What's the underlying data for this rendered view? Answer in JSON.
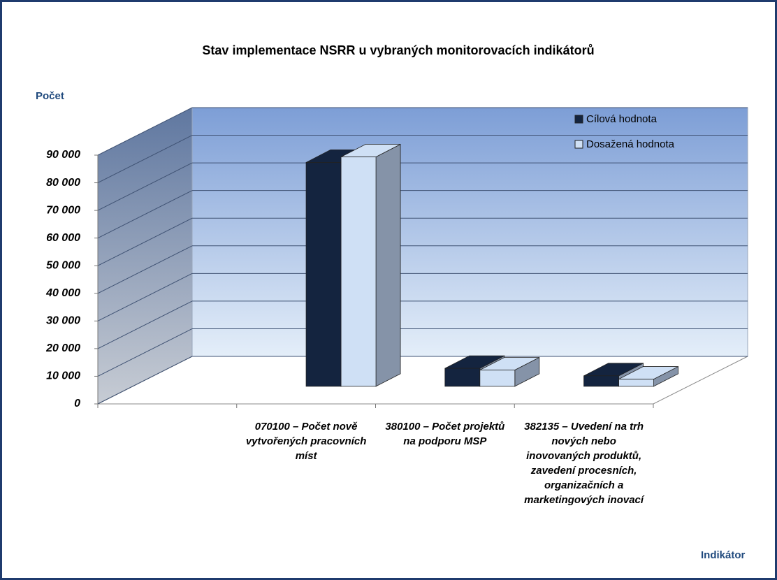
{
  "chart_data": {
    "type": "bar3d",
    "title": "Stav implementace NSRR  u vybraných monitorovacích indikátorů",
    "ylabel": "Počet",
    "xlabel": "Indikátor",
    "categories": [
      null,
      "070100 – Počet nově vytvořených pracovních míst",
      "380100 – Počet projektů na podporu MSP",
      "382135 – Uvedení na trh nových  nebo inovovaných produktů, zavedení procesních, organizačních a marketingových inovací"
    ],
    "series": [
      {
        "name": "Cílová hodnota",
        "color": "#14243f",
        "values": [
          null,
          81000,
          6500,
          3800
        ]
      },
      {
        "name": "Dosažená hodnota",
        "color": "#cfe0f5",
        "values": [
          null,
          83000,
          5900,
          2600
        ]
      }
    ],
    "ylim": [
      0,
      90000
    ],
    "yticks": [
      0,
      {
        "value": 10000,
        "label": "10 000"
      },
      {
        "value": 20000,
        "label": "20 000"
      },
      {
        "value": 30000,
        "label": "30 000"
      },
      {
        "value": 40000,
        "label": "40 000"
      },
      {
        "value": 50000,
        "label": "50 000"
      },
      {
        "value": 60000,
        "label": "60 000"
      },
      {
        "value": 70000,
        "label": "70 000"
      },
      {
        "value": 80000,
        "label": "80 000"
      },
      {
        "value": 90000,
        "label": "90 000"
      }
    ],
    "grid": true,
    "legend": "top-right"
  }
}
